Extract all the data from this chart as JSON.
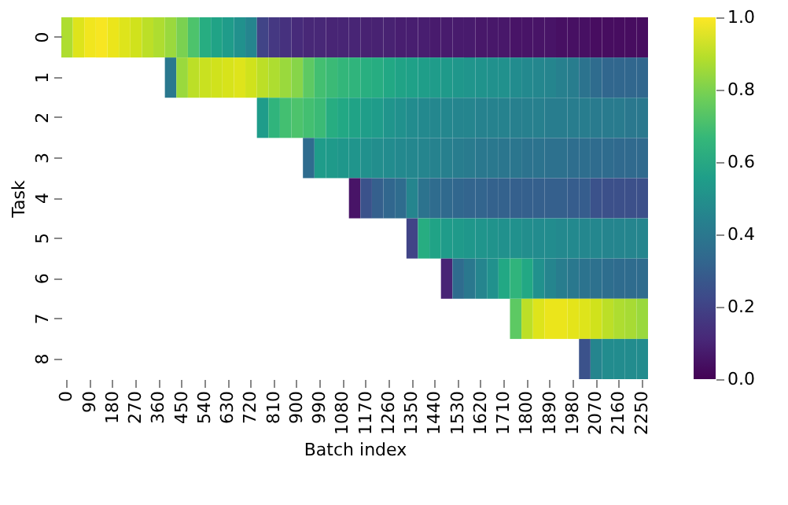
{
  "chart_data": {
    "type": "heatmap",
    "xlabel": "Batch index",
    "ylabel": "Task",
    "categories": [
      "0",
      null,
      "90",
      null,
      "180",
      null,
      "270",
      null,
      "360",
      null,
      "450",
      null,
      "540",
      null,
      "630",
      null,
      "720",
      null,
      "810",
      null,
      "900",
      null,
      "990",
      null,
      "1080",
      null,
      "1170",
      null,
      "1260",
      null,
      "1350",
      null,
      "1440",
      null,
      "1530",
      null,
      "1620",
      null,
      "1710",
      null,
      "1800",
      null,
      "1890",
      null,
      "1980",
      null,
      "2070",
      null,
      "2160",
      null,
      "2250"
    ],
    "y_categories": [
      "0",
      "1",
      "2",
      "3",
      "4",
      "5",
      "6",
      "7",
      "8"
    ],
    "cells": [
      [
        0.88,
        0.95,
        0.98,
        0.99,
        0.97,
        0.95,
        0.93,
        0.9,
        0.88,
        0.85,
        0.8,
        0.72,
        0.62,
        0.58,
        0.55,
        0.5,
        0.45,
        0.2,
        0.16,
        0.14,
        0.12,
        0.11,
        0.11,
        0.1,
        0.1,
        0.1,
        0.09,
        0.09,
        0.09,
        0.08,
        0.08,
        0.08,
        0.07,
        0.07,
        0.07,
        0.07,
        0.06,
        0.06,
        0.06,
        0.05,
        0.05,
        0.05,
        0.05,
        0.04,
        0.04,
        0.04,
        0.03,
        0.03,
        0.03,
        0.03,
        0.03
      ],
      [
        null,
        null,
        null,
        null,
        null,
        null,
        null,
        null,
        null,
        0.4,
        0.85,
        0.9,
        0.92,
        0.93,
        0.94,
        0.95,
        0.93,
        0.9,
        0.88,
        0.85,
        0.82,
        0.75,
        0.7,
        0.68,
        0.66,
        0.65,
        0.63,
        0.62,
        0.6,
        0.58,
        0.57,
        0.56,
        0.55,
        0.54,
        0.53,
        0.52,
        0.51,
        0.5,
        0.5,
        0.48,
        0.47,
        0.46,
        0.45,
        0.43,
        0.42,
        0.38,
        0.35,
        0.33,
        0.33,
        0.33,
        0.33
      ],
      [
        null,
        null,
        null,
        null,
        null,
        null,
        null,
        null,
        null,
        null,
        null,
        null,
        null,
        null,
        null,
        null,
        null,
        0.55,
        0.65,
        0.7,
        0.72,
        0.7,
        0.68,
        0.62,
        0.6,
        0.58,
        0.56,
        0.55,
        0.52,
        0.5,
        0.48,
        0.47,
        0.46,
        0.46,
        0.45,
        0.45,
        0.44,
        0.44,
        0.44,
        0.43,
        0.43,
        0.43,
        0.42,
        0.42,
        0.42,
        0.42,
        0.41,
        0.41,
        0.41,
        0.4,
        0.4
      ],
      [
        null,
        null,
        null,
        null,
        null,
        null,
        null,
        null,
        null,
        null,
        null,
        null,
        null,
        null,
        null,
        null,
        null,
        null,
        null,
        null,
        null,
        0.35,
        0.55,
        0.54,
        0.53,
        0.52,
        0.5,
        0.49,
        0.48,
        0.47,
        0.46,
        0.45,
        0.44,
        0.43,
        0.42,
        0.41,
        0.4,
        0.4,
        0.39,
        0.39,
        0.38,
        0.38,
        0.37,
        0.37,
        0.36,
        0.36,
        0.35,
        0.35,
        0.34,
        0.34,
        0.34
      ],
      [
        null,
        null,
        null,
        null,
        null,
        null,
        null,
        null,
        null,
        null,
        null,
        null,
        null,
        null,
        null,
        null,
        null,
        null,
        null,
        null,
        null,
        null,
        null,
        null,
        null,
        0.05,
        0.25,
        0.3,
        0.33,
        0.35,
        0.45,
        0.38,
        0.35,
        0.34,
        0.33,
        0.32,
        0.32,
        0.31,
        0.31,
        0.3,
        0.3,
        0.3,
        0.3,
        0.3,
        0.29,
        0.29,
        0.25,
        0.24,
        0.24,
        0.24,
        0.24
      ],
      [
        null,
        null,
        null,
        null,
        null,
        null,
        null,
        null,
        null,
        null,
        null,
        null,
        null,
        null,
        null,
        null,
        null,
        null,
        null,
        null,
        null,
        null,
        null,
        null,
        null,
        null,
        null,
        null,
        null,
        null,
        0.2,
        0.62,
        0.58,
        0.55,
        0.54,
        0.53,
        0.52,
        0.51,
        0.5,
        0.5,
        0.49,
        0.48,
        0.48,
        0.47,
        0.47,
        0.46,
        0.46,
        0.45,
        0.45,
        0.45,
        0.45
      ],
      [
        null,
        null,
        null,
        null,
        null,
        null,
        null,
        null,
        null,
        null,
        null,
        null,
        null,
        null,
        null,
        null,
        null,
        null,
        null,
        null,
        null,
        null,
        null,
        null,
        null,
        null,
        null,
        null,
        null,
        null,
        null,
        null,
        null,
        0.1,
        0.35,
        0.4,
        0.45,
        0.5,
        0.6,
        0.65,
        0.6,
        0.5,
        0.45,
        0.42,
        0.4,
        0.38,
        0.37,
        0.36,
        0.35,
        0.35,
        0.35
      ],
      [
        null,
        null,
        null,
        null,
        null,
        null,
        null,
        null,
        null,
        null,
        null,
        null,
        null,
        null,
        null,
        null,
        null,
        null,
        null,
        null,
        null,
        null,
        null,
        null,
        null,
        null,
        null,
        null,
        null,
        null,
        null,
        null,
        null,
        null,
        null,
        null,
        null,
        null,
        null,
        0.75,
        0.9,
        0.95,
        0.97,
        0.97,
        0.96,
        0.95,
        0.93,
        0.9,
        0.88,
        0.87,
        0.85
      ],
      [
        null,
        null,
        null,
        null,
        null,
        null,
        null,
        null,
        null,
        null,
        null,
        null,
        null,
        null,
        null,
        null,
        null,
        null,
        null,
        null,
        null,
        null,
        null,
        null,
        null,
        null,
        null,
        null,
        null,
        null,
        null,
        null,
        null,
        null,
        null,
        null,
        null,
        null,
        null,
        null,
        null,
        null,
        null,
        null,
        null,
        0.25,
        0.45,
        0.48,
        0.48,
        0.48,
        0.48
      ]
    ],
    "clim": [
      0,
      1
    ],
    "cticks": [
      {
        "value": 0,
        "label": "0.0"
      },
      0.2,
      0.4,
      0.6,
      0.8,
      {
        "value": 1,
        "label": "1.0"
      }
    ]
  }
}
